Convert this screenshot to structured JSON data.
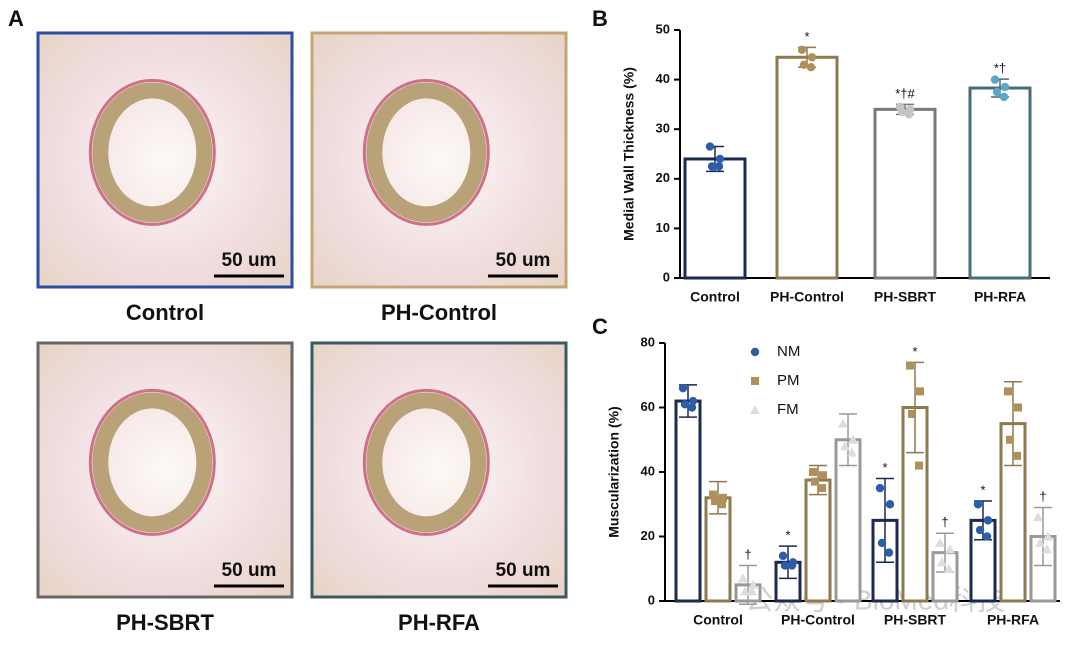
{
  "figure": {
    "panel_labels": [
      "A",
      "B",
      "C"
    ],
    "images": [
      {
        "label": "Control",
        "scale": "50 um"
      },
      {
        "label": "PH-Control",
        "scale": "50 um"
      },
      {
        "label": "PH-SBRT",
        "scale": "50 um"
      },
      {
        "label": "PH-RFA",
        "scale": "50 um"
      }
    ],
    "watermark": "公众号 · BioMed科技"
  },
  "chart_data": [
    {
      "type": "bar",
      "ylabel": "Medial Wall Thickness (%)",
      "categories": [
        "Control",
        "PH-Control",
        "PH-SBRT",
        "PH-RFA"
      ],
      "values": [
        24,
        44.5,
        34,
        38.3
      ],
      "errors": [
        2.5,
        2,
        1,
        1.8
      ],
      "points": [
        [
          26.5,
          24,
          22.5,
          22.5
        ],
        [
          46,
          44.5,
          43,
          42.5
        ],
        [
          34.5,
          34,
          33.5,
          33
        ],
        [
          40,
          38.5,
          37.5,
          36.5
        ]
      ],
      "annotations": [
        null,
        "*",
        "*†#",
        "*†"
      ],
      "colors": [
        "#1b2a4f",
        "#8c7a50",
        "#7a7a7a",
        "#4a6b78"
      ],
      "point_colors": [
        "#2c5ea8",
        "#b08f5a",
        "#c4c4c4",
        "#5aa6c4"
      ],
      "ylim": [
        0,
        50
      ],
      "yticks": [
        0,
        10,
        20,
        30,
        40,
        50
      ]
    },
    {
      "type": "bar",
      "ylabel": "Muscularization (%)",
      "categories": [
        "Control",
        "PH-Control",
        "PH-SBRT",
        "PH-RFA"
      ],
      "series": [
        {
          "name": "NM",
          "color": "#1b2a4f",
          "point_color": "#2c5ea8",
          "marker": "circle",
          "values": [
            62,
            12,
            25,
            25
          ],
          "errors": [
            5,
            5,
            13,
            6
          ],
          "points": [
            [
              66,
              62,
              61,
              60
            ],
            [
              14,
              12,
              11,
              11
            ],
            [
              35,
              30,
              18,
              15
            ],
            [
              30,
              25,
              22,
              20
            ]
          ],
          "annotations": [
            null,
            "*",
            "*",
            "*"
          ]
        },
        {
          "name": "PM",
          "color": "#8c7a50",
          "point_color": "#b08f5a",
          "marker": "square",
          "values": [
            32,
            37.5,
            60,
            55
          ],
          "errors": [
            5,
            4.5,
            14,
            13
          ],
          "points": [
            [
              33,
              32,
              31,
              30
            ],
            [
              40,
              39,
              37,
              35
            ],
            [
              73,
              65,
              58,
              42
            ],
            [
              65,
              60,
              50,
              45
            ]
          ],
          "annotations": [
            null,
            null,
            "*",
            null
          ]
        },
        {
          "name": "FM",
          "color": "#999999",
          "point_color": "#dddddd",
          "marker": "triangle",
          "values": [
            5,
            50,
            15,
            20
          ],
          "errors": [
            6,
            8,
            6,
            9
          ],
          "points": [
            [
              7,
              5,
              3,
              3
            ],
            [
              55,
              50,
              48,
              46
            ],
            [
              18,
              16,
              12,
              10
            ],
            [
              26,
              20,
              18,
              16
            ]
          ],
          "annotations": [
            "†",
            null,
            "†",
            "†"
          ]
        }
      ],
      "ylim": [
        0,
        80
      ],
      "yticks": [
        0,
        20,
        40,
        60,
        80
      ]
    }
  ]
}
